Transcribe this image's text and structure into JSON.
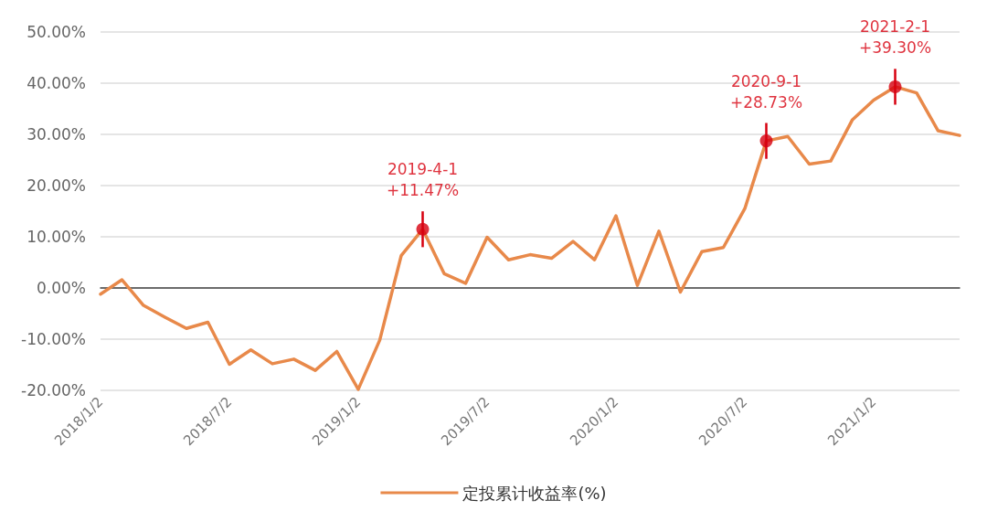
{
  "chart_data": {
    "type": "line",
    "categories": [
      "2018/1/2",
      null,
      null,
      null,
      null,
      null,
      "2018/7/2",
      null,
      null,
      null,
      null,
      null,
      "2019/1/2",
      null,
      null,
      null,
      null,
      null,
      "2019/7/2",
      null,
      null,
      null,
      null,
      null,
      "2020/1/2",
      null,
      null,
      null,
      null,
      null,
      "2020/7/2",
      null,
      null,
      null,
      null,
      null,
      "2021/1/2",
      null,
      null,
      null,
      null
    ],
    "series": [
      {
        "name": "定投累计收益率(%)",
        "marker": "none",
        "color": "#e8894a",
        "values": [
          -1.2,
          1.6,
          -3.4,
          -5.7,
          -7.9,
          -6.7,
          -14.9,
          -12.1,
          -14.8,
          -13.9,
          -16.1,
          -12.4,
          -19.8,
          -10.2,
          6.3,
          11.47,
          2.8,
          0.9,
          9.9,
          5.5,
          6.5,
          5.8,
          9.1,
          5.5,
          14.1,
          0.5,
          11.1,
          -0.8,
          7.1,
          7.9,
          15.5,
          28.73,
          29.6,
          24.2,
          24.8,
          32.8,
          36.7,
          39.3,
          38.1,
          30.7,
          29.8
        ]
      },
      {
        "type": "scatter",
        "marker": "circle",
        "color": "#d7000f",
        "errors": [
          null,
          null,
          null,
          null,
          null,
          null,
          null,
          null,
          null,
          null,
          null,
          null,
          null,
          null,
          null,
          3.5,
          null,
          null,
          null,
          null,
          null,
          null,
          null,
          null,
          null,
          null,
          null,
          null,
          null,
          null,
          null,
          3.5,
          null,
          null,
          null,
          null,
          null,
          3.5,
          null,
          null,
          null
        ],
        "values": [
          null,
          null,
          null,
          null,
          null,
          null,
          null,
          null,
          null,
          null,
          null,
          null,
          null,
          null,
          null,
          11.47,
          null,
          null,
          null,
          null,
          null,
          null,
          null,
          null,
          null,
          null,
          null,
          null,
          null,
          null,
          null,
          28.73,
          null,
          null,
          null,
          null,
          null,
          39.3,
          null,
          null,
          null
        ],
        "value_labels": [
          null,
          null,
          null,
          null,
          null,
          null,
          null,
          null,
          null,
          null,
          null,
          null,
          null,
          null,
          null,
          "2019-4-1\n+11.47%",
          null,
          null,
          null,
          null,
          null,
          null,
          null,
          null,
          null,
          null,
          null,
          null,
          null,
          null,
          null,
          "2020-9-1\n+28.73%",
          null,
          null,
          null,
          null,
          null,
          "2021-2-1\n+39.30%",
          null,
          null,
          null
        ]
      }
    ],
    "ylim": [
      -20,
      50
    ],
    "yticks": [
      {
        "value": -20,
        "label": "-20.00%"
      },
      {
        "value": -10,
        "label": "-10.00%"
      },
      {
        "value": 0,
        "label": "0.00%"
      },
      {
        "value": 10,
        "label": "10.00%"
      },
      {
        "value": 20,
        "label": "20.00%"
      },
      {
        "value": 30,
        "label": "30.00%"
      },
      {
        "value": 40,
        "label": "40.00%"
      },
      {
        "value": 50,
        "label": "50.00%"
      }
    ],
    "grid": "y",
    "legend": "bottom",
    "line_style": "solid"
  }
}
